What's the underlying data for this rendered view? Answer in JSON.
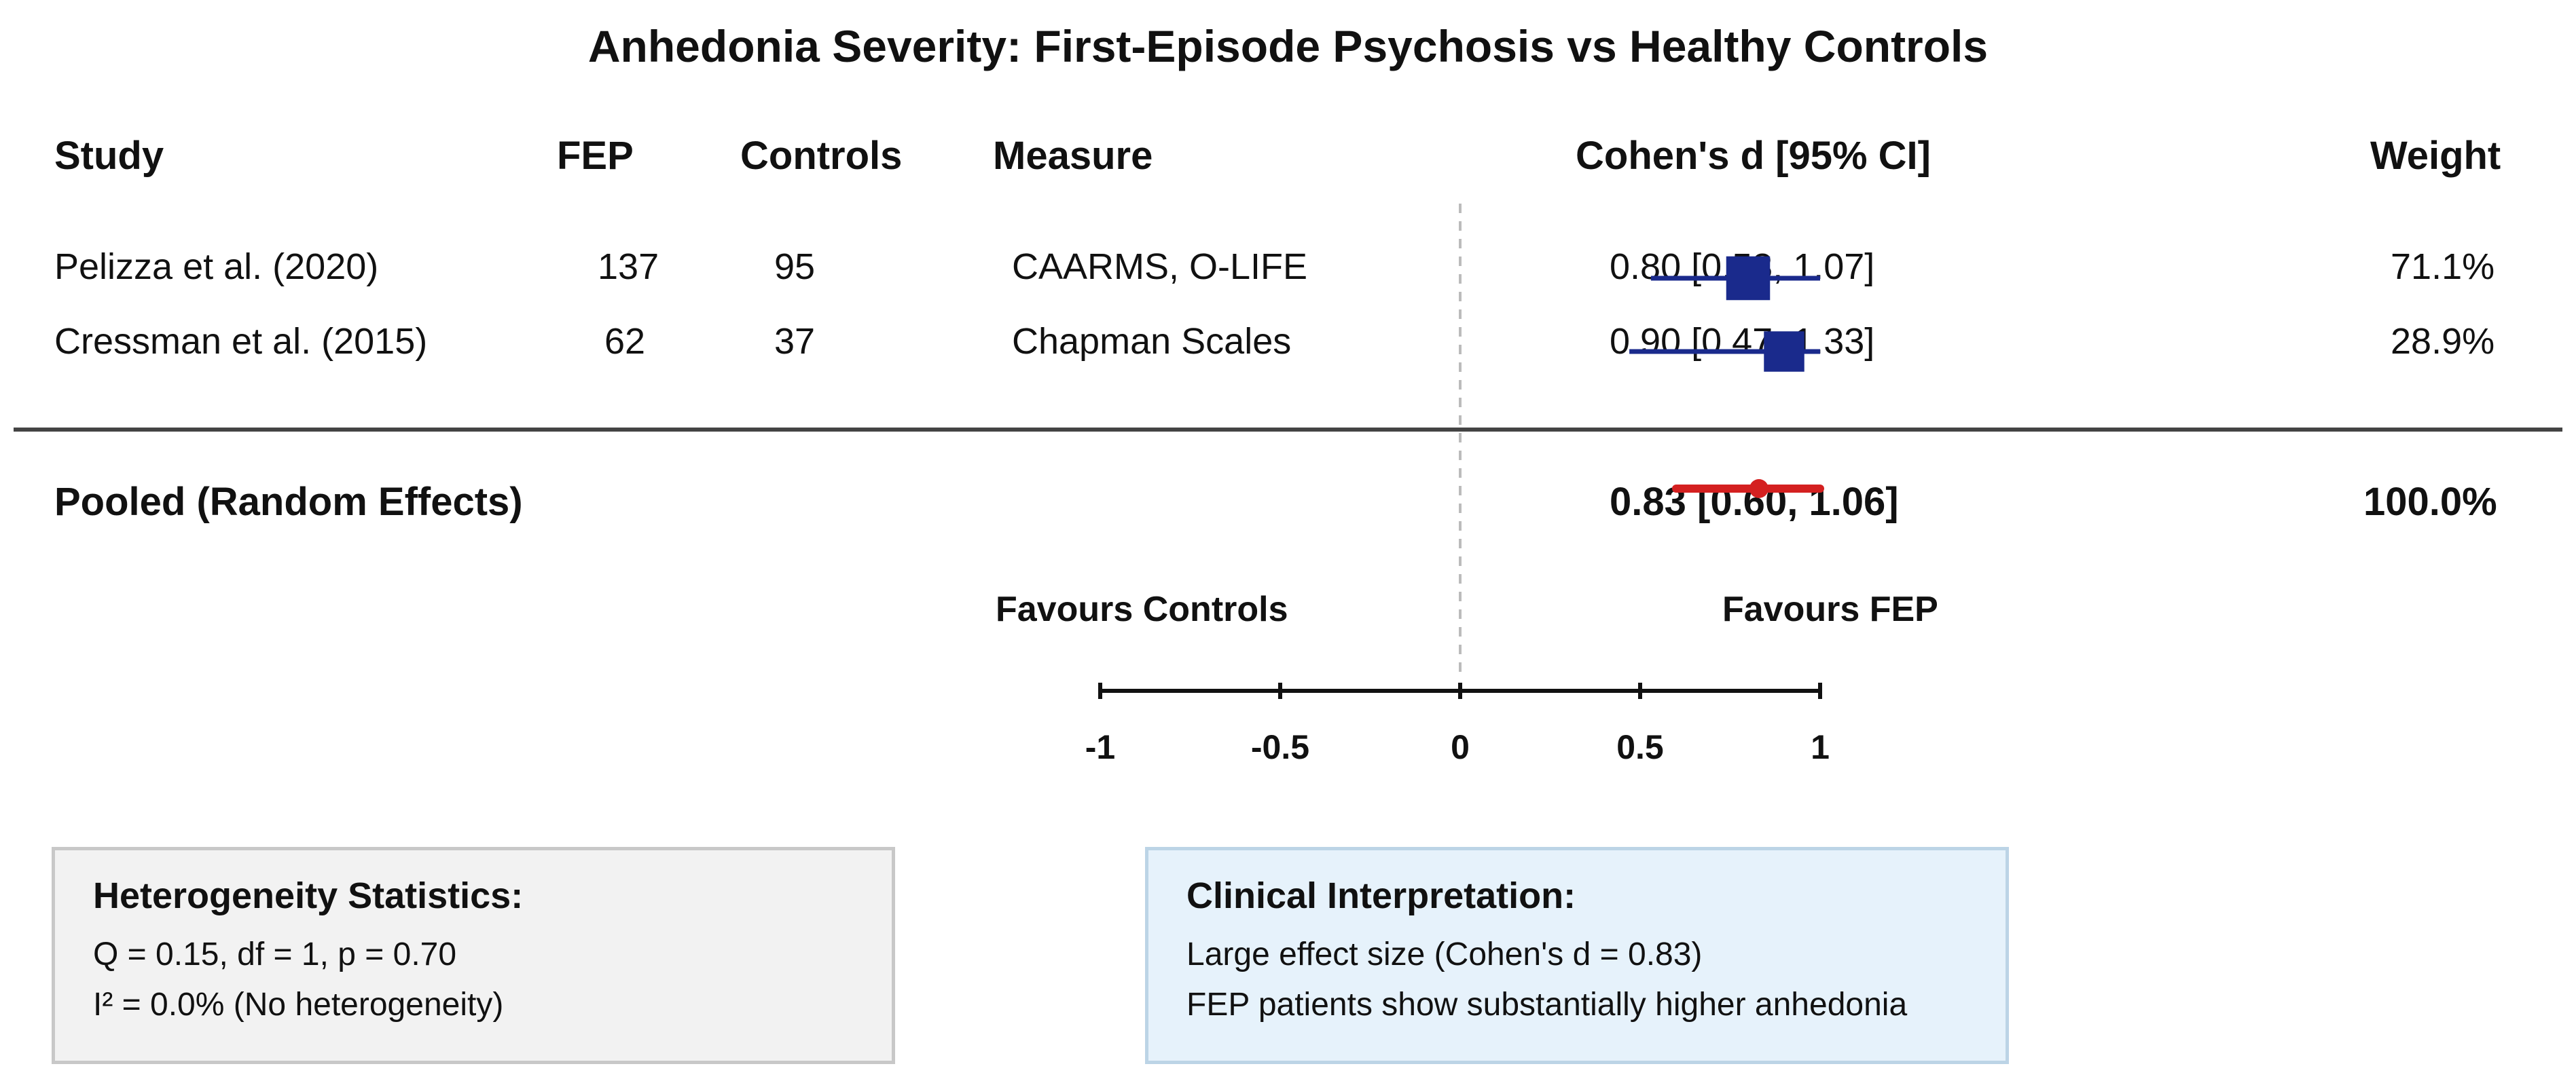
{
  "title": "Anhedonia Severity: First-Episode Psychosis vs Healthy Controls",
  "headers": {
    "study": "Study",
    "fep": "FEP",
    "controls": "Controls",
    "measure": "Measure",
    "effect": "Cohen's d [95% CI]",
    "weight": "Weight"
  },
  "studies": [
    {
      "study": "Pelizza et al. (2020)",
      "fep": "137",
      "controls": "95",
      "measure": "CAARMS, O-LIFE",
      "ci_text": "0.80 [0.53, 1.07]",
      "weight": "71.1%"
    },
    {
      "study": "Cressman et al. (2015)",
      "fep": "62",
      "controls": "37",
      "measure": "Chapman Scales",
      "ci_text": "0.90 [0.47, 1.33]",
      "weight": "28.9%"
    }
  ],
  "pooled": {
    "label": "Pooled (Random Effects)",
    "ci_text": "0.83 [0.60, 1.06]",
    "weight": "100.0%"
  },
  "favours": {
    "left": "Favours Controls",
    "right": "Favours FEP"
  },
  "heterogeneity": {
    "title": "Heterogeneity Statistics:",
    "line1": "Q = 0.15, df = 1, p = 0.70",
    "line2": "I² = 0.0% (No heterogeneity)"
  },
  "interpretation": {
    "title": "Clinical Interpretation:",
    "line1": "Large effect size (Cohen's d = 0.83)",
    "line2": "FEP patients show substantially higher anhedonia"
  },
  "colors": {
    "study_marker": "#1a2a8c",
    "pooled_marker": "#d42020",
    "null_line": "#bbbbbb",
    "separator": "#444444"
  },
  "chart_data": {
    "type": "forest",
    "title": "Anhedonia Severity: First-Episode Psychosis vs Healthy Controls",
    "x_ticks": [
      -1,
      -0.5,
      0,
      0.5,
      1
    ],
    "x_tick_labels": [
      "-1",
      "-0.5",
      "0",
      "0.5",
      "1"
    ],
    "null_value": 0,
    "studies": [
      {
        "name": "Pelizza et al. (2020)",
        "d": 0.8,
        "lower": 0.53,
        "upper": 1.07,
        "weight": 71.1
      },
      {
        "name": "Cressman et al. (2015)",
        "d": 0.9,
        "lower": 0.47,
        "upper": 1.33,
        "weight": 28.9
      }
    ],
    "pooled": {
      "name": "Pooled (Random Effects)",
      "d": 0.83,
      "lower": 0.6,
      "upper": 1.06,
      "weight": 100.0
    }
  }
}
